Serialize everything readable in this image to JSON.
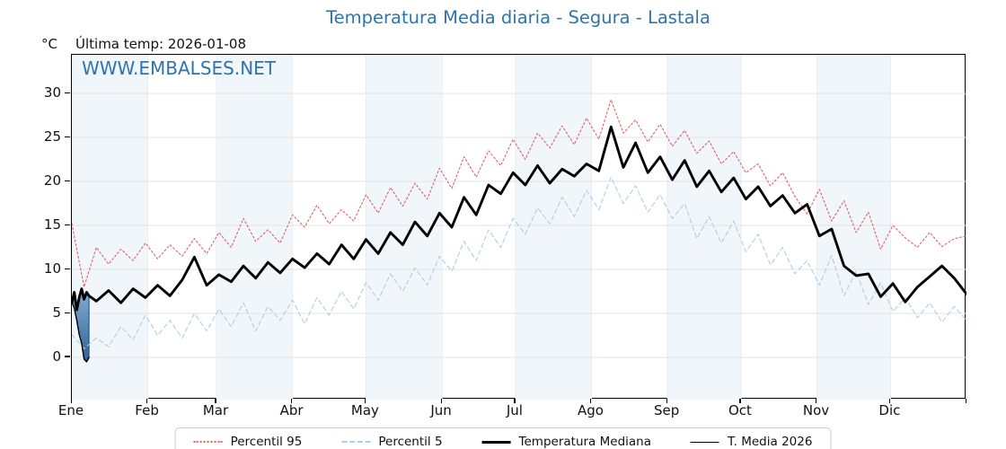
{
  "header": {
    "title": "Temperatura Media diaria - Segura - Lastala",
    "units_label": "°C",
    "last_temp_label": "Última temp: 2026-01-08"
  },
  "watermark": "WWW.EMBALSES.NET",
  "colors": {
    "title_blue": "#2e74ad",
    "p95_red": "#e05f5f",
    "p5_blue": "#a9d1e6",
    "median_black": "#000000",
    "t2026_black": "#000000",
    "fill_top": "#85aed6",
    "fill_bottom": "#2f6294",
    "fill_edge": "#1b4975",
    "month_band": "#f1f6fa",
    "h_grid": "#e3e3e3",
    "v_grid": "#e7edf3",
    "axis": "#000000"
  },
  "legend": {
    "items": [
      {
        "label": "Percentil 95",
        "style": "dotted-red"
      },
      {
        "label": "Percentil 5",
        "style": "dashed-blue"
      },
      {
        "label": "Temperatura Mediana",
        "style": "thick-black"
      },
      {
        "label": "T. Media 2026",
        "style": "thin-black"
      }
    ]
  },
  "chart_data": {
    "type": "line",
    "title": "Temperatura Media diaria - Segura - Lastala",
    "ylabel": "°C",
    "ylim": [
      -4.8,
      34.4
    ],
    "yticks": [
      0,
      5,
      10,
      15,
      20,
      25,
      30
    ],
    "x_unit": "day_of_year",
    "xlim": [
      0,
      365
    ],
    "month_labels": [
      "Ene",
      "Feb",
      "Mar",
      "Abr",
      "May",
      "Jun",
      "Jul",
      "Ago",
      "Sep",
      "Oct",
      "Nov",
      "Dic"
    ],
    "month_starts": [
      0,
      31,
      59,
      90,
      120,
      151,
      181,
      212,
      243,
      273,
      304,
      334,
      365
    ],
    "shaded_months": [
      0,
      2,
      4,
      6,
      8,
      10
    ],
    "grid": true,
    "legend_position": "bottom",
    "x_grid_5d": [
      0,
      5,
      10,
      15,
      20,
      25,
      30,
      35,
      40,
      45,
      50,
      55,
      60,
      65,
      70,
      75,
      80,
      85,
      90,
      95,
      100,
      105,
      110,
      115,
      120,
      125,
      130,
      135,
      140,
      145,
      150,
      155,
      160,
      165,
      170,
      175,
      180,
      185,
      190,
      195,
      200,
      205,
      210,
      215,
      220,
      225,
      230,
      235,
      240,
      245,
      250,
      255,
      260,
      265,
      270,
      275,
      280,
      285,
      290,
      295,
      300,
      305,
      310,
      315,
      320,
      325,
      330,
      335,
      340,
      345,
      350,
      355,
      360,
      365
    ],
    "series": [
      {
        "name": "Percentil 95",
        "style": {
          "color": "#e05f5f",
          "width": 1.1,
          "dash": [
            2,
            2.6
          ]
        },
        "x_ref": "x_grid_5d",
        "y": [
          15.2,
          8.0,
          12.5,
          10.6,
          12.3,
          11.0,
          13.0,
          11.2,
          12.8,
          11.5,
          13.5,
          11.8,
          14.2,
          12.5,
          15.8,
          13.2,
          14.5,
          13.0,
          16.2,
          14.8,
          17.3,
          15.2,
          16.8,
          15.5,
          18.5,
          16.4,
          19.3,
          17.2,
          19.8,
          18.0,
          21.5,
          19.2,
          22.8,
          20.5,
          23.5,
          21.8,
          24.8,
          22.5,
          25.5,
          23.8,
          26.3,
          24.2,
          27.2,
          24.8,
          29.3,
          25.5,
          27.0,
          24.5,
          26.5,
          24.0,
          25.8,
          23.2,
          24.6,
          22.0,
          23.4,
          21.0,
          22.0,
          19.5,
          21.0,
          18.3,
          16.3,
          19.1,
          15.5,
          17.8,
          14.2,
          16.5,
          12.3,
          15.0,
          13.6,
          12.5,
          14.2,
          12.6,
          13.5,
          13.8
        ]
      },
      {
        "name": "Percentil 5",
        "style": {
          "color": "#a9d1e6",
          "width": 1.1,
          "dash": [
            5,
            3.5
          ]
        },
        "x_ref": "x_grid_5d",
        "y": [
          2.6,
          1.0,
          2.2,
          1.2,
          3.5,
          2.0,
          4.8,
          2.5,
          4.2,
          2.2,
          5.0,
          3.0,
          5.5,
          3.5,
          6.2,
          3.0,
          5.8,
          4.2,
          6.5,
          3.8,
          6.8,
          4.8,
          7.5,
          5.5,
          8.5,
          6.5,
          9.5,
          7.5,
          10.2,
          8.2,
          11.5,
          9.8,
          13.2,
          11.0,
          14.5,
          12.5,
          15.8,
          14.0,
          17.0,
          15.2,
          18.2,
          16.0,
          19.0,
          16.8,
          20.5,
          17.5,
          19.5,
          16.5,
          18.5,
          15.8,
          17.5,
          13.5,
          16.0,
          13.0,
          15.5,
          12.0,
          14.0,
          10.5,
          12.5,
          9.5,
          11.0,
          8.2,
          11.6,
          7.0,
          9.8,
          6.0,
          8.5,
          5.2,
          6.8,
          4.5,
          6.2,
          4.0,
          5.8,
          4.2
        ]
      },
      {
        "name": "Temperatura Mediana",
        "style": {
          "color": "#000000",
          "width": 2.9,
          "dash": null
        },
        "x": [
          0,
          1,
          2,
          3,
          4,
          5,
          6,
          7,
          10,
          15,
          20,
          25,
          30,
          35,
          40,
          45,
          50,
          55,
          60,
          65,
          70,
          75,
          80,
          85,
          90,
          95,
          100,
          105,
          110,
          115,
          120,
          125,
          130,
          135,
          140,
          145,
          150,
          155,
          160,
          165,
          170,
          175,
          180,
          185,
          190,
          195,
          200,
          205,
          210,
          215,
          220,
          225,
          230,
          235,
          240,
          245,
          250,
          255,
          260,
          265,
          270,
          275,
          280,
          285,
          290,
          295,
          300,
          305,
          310,
          315,
          320,
          325,
          330,
          335,
          340,
          345,
          350,
          355,
          360,
          365
        ],
        "y": [
          6.2,
          7.4,
          5.4,
          6.8,
          7.8,
          6.6,
          7.4,
          7.0,
          6.4,
          7.6,
          6.2,
          7.8,
          6.8,
          8.2,
          7.0,
          8.8,
          11.4,
          8.2,
          9.4,
          8.6,
          10.4,
          9.0,
          10.8,
          9.6,
          11.2,
          10.2,
          11.8,
          10.6,
          12.8,
          11.2,
          13.4,
          11.8,
          14.2,
          12.8,
          15.4,
          13.8,
          16.4,
          14.8,
          18.2,
          16.2,
          19.6,
          18.6,
          21.0,
          19.6,
          21.8,
          19.8,
          21.4,
          20.6,
          22.0,
          21.2,
          26.2,
          21.6,
          24.4,
          21.0,
          22.8,
          20.2,
          22.4,
          19.4,
          21.2,
          18.8,
          20.4,
          18.0,
          19.4,
          17.2,
          18.4,
          16.4,
          17.4,
          13.8,
          14.6,
          10.4,
          9.3,
          9.5,
          6.9,
          8.4,
          6.3,
          8.0,
          9.2,
          10.4,
          9.0,
          7.2
        ]
      },
      {
        "name": "T. Media 2026",
        "style": {
          "color": "#000000",
          "width": 1.4,
          "dash": null
        },
        "x": [
          0,
          1,
          2,
          3,
          4,
          5,
          6,
          7
        ],
        "y": [
          6.3,
          5.6,
          4.2,
          2.6,
          1.6,
          -0.2,
          -0.5,
          0.0
        ]
      }
    ],
    "fill_between": {
      "top_series": "Temperatura Mediana",
      "bottom_series": "T. Media 2026",
      "x_start": 0,
      "x_end": 7
    }
  }
}
